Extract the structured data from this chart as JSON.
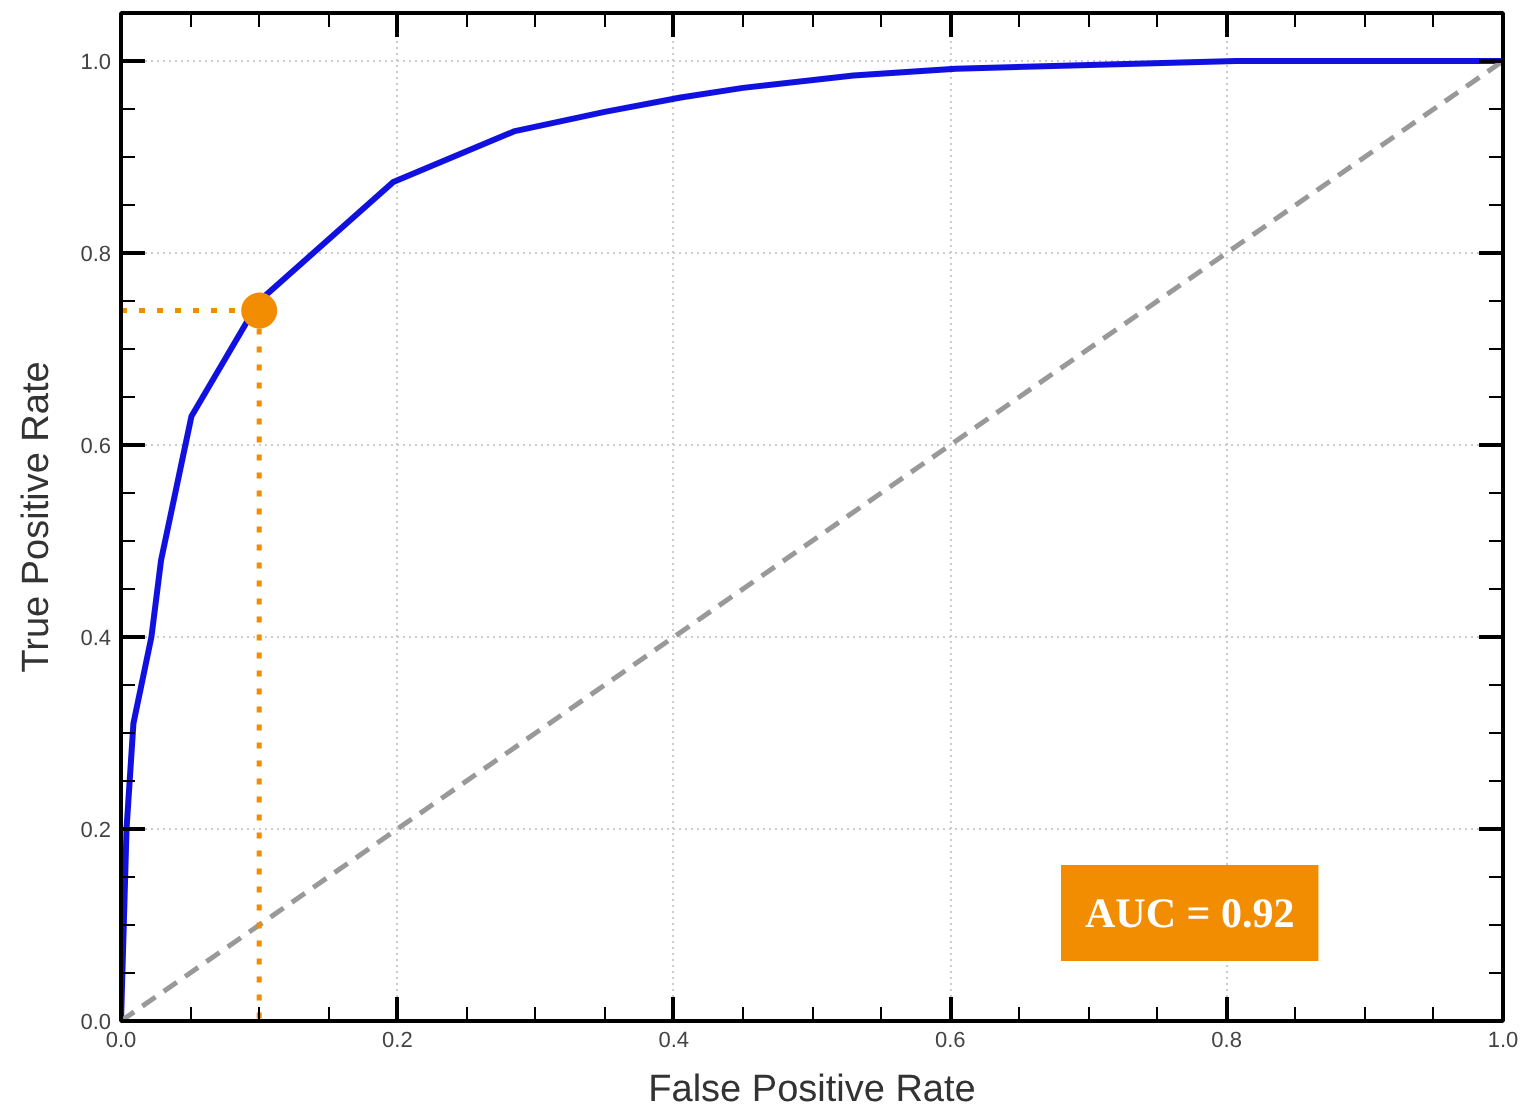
{
  "chart_data": {
    "type": "line",
    "xlabel": "False Positive Rate",
    "ylabel": "True Positive Rate",
    "xlim": [
      0,
      1
    ],
    "ylim": [
      0,
      1.05
    ],
    "xticks": [
      {
        "value": 0,
        "label": "0.0"
      },
      0.2,
      0.4,
      0.6,
      0.8,
      {
        "value": 1,
        "label": "1.0"
      }
    ],
    "yticks": [
      {
        "value": 0,
        "label": "0.0"
      },
      0.2,
      0.4,
      0.6,
      0.8,
      {
        "value": 1,
        "label": "1.0"
      }
    ],
    "grid": true,
    "series": [
      {
        "color": "#1010e0",
        "line_style": "solid",
        "x": [
          0,
          0.004,
          0.009,
          0.022,
          0.029,
          0.051,
          0.1,
          0.197,
          0.285,
          0.35,
          0.405,
          0.45,
          0.53,
          0.604,
          0.807,
          1.0
        ],
        "values": [
          0,
          0.2,
          0.31,
          0.4,
          0.48,
          0.63,
          0.75,
          0.874,
          0.927,
          0.947,
          0.962,
          0.972,
          0.985,
          0.992,
          1.0,
          1.0
        ]
      },
      {
        "color": "#999999",
        "line_style": "dashed",
        "x": [
          0,
          1
        ],
        "values": [
          0,
          1
        ]
      },
      {
        "color": "#f28c00",
        "line_style": "dotted",
        "x": [
          0,
          0.1
        ],
        "values": [
          0.74,
          0.74
        ]
      },
      {
        "color": "#f28c00",
        "line_style": "dotted",
        "x": [
          0.1,
          0.1
        ],
        "values": [
          0.74,
          0
        ]
      },
      {
        "type": "scatter",
        "color": "#f28c00",
        "marker": "circle",
        "x": [
          0.1
        ],
        "values": [
          0.74
        ]
      }
    ],
    "annotations": [
      "AUC = 0.92"
    ]
  }
}
